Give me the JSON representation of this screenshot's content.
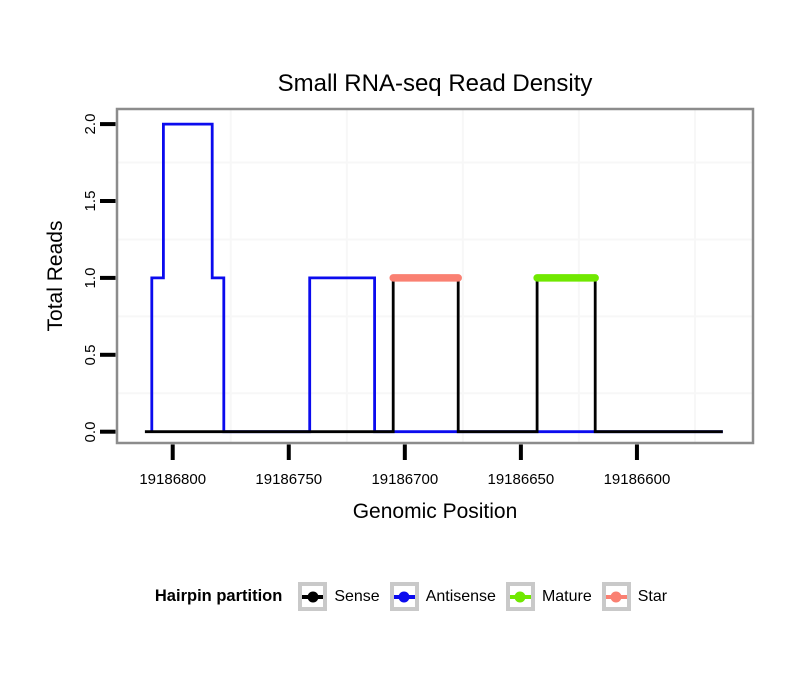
{
  "title": "Small RNA-seq Read Density",
  "x_axis": {
    "label": "Genomic Position",
    "tick_labels": [
      "19186800",
      "19186750",
      "19186700",
      "19186650",
      "19186600"
    ],
    "tick_values": [
      19186800,
      19186750,
      19186700,
      19186650,
      19186600
    ],
    "minor_gridlines": [
      19186775,
      19186725,
      19186675,
      19186625,
      19186575
    ],
    "reversed": true
  },
  "y_axis": {
    "label": "Total Reads",
    "tick_labels": [
      "0.0",
      "0.5",
      "1.0",
      "1.5",
      "2.0"
    ],
    "tick_values": [
      0,
      0.5,
      1,
      1.5,
      2
    ],
    "minor_gridlines": [
      0.25,
      0.75,
      1.25,
      1.75
    ]
  },
  "chart_data": {
    "type": "line",
    "title": "Small RNA-seq Read Density",
    "xlabel": "Genomic Position",
    "ylabel": "Total Reads",
    "x_reversed": true,
    "xlim": [
      19186824,
      19186550
    ],
    "ylim": [
      0,
      2
    ],
    "series": [
      {
        "name": "Antisense",
        "color": "#0b0bee",
        "style": "step-line",
        "points": [
          [
            19186809,
            0
          ],
          [
            19186809,
            1
          ],
          [
            19186804,
            1
          ],
          [
            19186804,
            2
          ],
          [
            19186783,
            2
          ],
          [
            19186783,
            1
          ],
          [
            19186778,
            1
          ],
          [
            19186778,
            0
          ],
          [
            19186741,
            0
          ],
          [
            19186741,
            1
          ],
          [
            19186713,
            1
          ],
          [
            19186713,
            0
          ],
          [
            19186563,
            0
          ]
        ]
      },
      {
        "name": "Sense",
        "color": "#000000",
        "style": "step-line",
        "points": [
          [
            19186812,
            0
          ],
          [
            19186705,
            0
          ],
          [
            19186705,
            1
          ],
          [
            19186677,
            1
          ],
          [
            19186677,
            0
          ],
          [
            19186643,
            0
          ],
          [
            19186643,
            1
          ],
          [
            19186618,
            1
          ],
          [
            19186618,
            0
          ],
          [
            19186563,
            0
          ]
        ]
      },
      {
        "name": "Star",
        "color": "#fa8072",
        "style": "thick-segment",
        "y": 1,
        "x_from": 19186705,
        "x_to": 19186677
      },
      {
        "name": "Mature",
        "color": "#70e800",
        "style": "thick-segment",
        "y": 1,
        "x_from": 19186643,
        "x_to": 19186618
      }
    ]
  },
  "legend": {
    "title": "Hairpin partition",
    "items": [
      {
        "label": "Sense",
        "color": "#000000"
      },
      {
        "label": "Antisense",
        "color": "#0b0bee"
      },
      {
        "label": "Mature",
        "color": "#70e800"
      },
      {
        "label": "Star",
        "color": "#fa8072"
      }
    ]
  },
  "style_colors": {
    "panel_border": "#8c8c8c",
    "minor_gridline": "#f7f7f7",
    "tick": "#000000",
    "legend_key_border": "#c9c9c9"
  }
}
